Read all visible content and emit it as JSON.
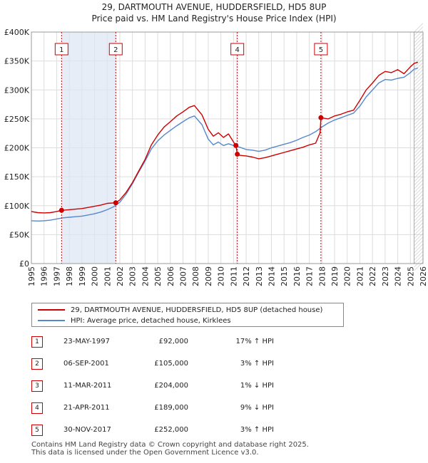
{
  "title_line1": "29, DARTMOUTH AVENUE, HUDDERSFIELD, HD5 8UP",
  "title_line2": "Price paid vs. HM Land Registry's House Price Index (HPI)",
  "chart_data": {
    "type": "line",
    "xlim": [
      1995,
      2026
    ],
    "ylim": [
      0,
      400000
    ],
    "grid": true,
    "x_ticks": [
      "1995",
      "1996",
      "1997",
      "1998",
      "1999",
      "2000",
      "2001",
      "2002",
      "2003",
      "2004",
      "2005",
      "2006",
      "2007",
      "2008",
      "2009",
      "2010",
      "2011",
      "2012",
      "2013",
      "2014",
      "2015",
      "2016",
      "2017",
      "2018",
      "2019",
      "2020",
      "2021",
      "2022",
      "2023",
      "2024",
      "2025",
      "2026"
    ],
    "y_ticks": [
      {
        "value": 0,
        "label": "£0"
      },
      {
        "value": 50000,
        "label": "£50K"
      },
      {
        "value": 100000,
        "label": "£100K"
      },
      {
        "value": 150000,
        "label": "£150K"
      },
      {
        "value": 200000,
        "label": "£200K"
      },
      {
        "value": 250000,
        "label": "£250K"
      },
      {
        "value": 300000,
        "label": "£300K"
      },
      {
        "value": 350000,
        "label": "£350K"
      },
      {
        "value": 400000,
        "label": "£400K"
      }
    ],
    "series": [
      {
        "name": "29, DARTMOUTH AVENUE, HUDDERSFIELD, HD5 8UP (detached house)",
        "color": "#cc0000",
        "x": [
          1995.0,
          1995.5,
          1996.0,
          1996.5,
          1997.0,
          1997.39,
          1998.0,
          1998.5,
          1999.0,
          1999.5,
          2000.0,
          2000.5,
          2001.0,
          2001.68,
          2002.0,
          2002.5,
          2003.0,
          2003.5,
          2004.0,
          2004.5,
          2005.0,
          2005.5,
          2006.0,
          2006.5,
          2007.0,
          2007.5,
          2007.9,
          2008.5,
          2009.0,
          2009.4,
          2009.8,
          2010.2,
          2010.6,
          2011.0,
          2011.19,
          2011.3,
          2011.5,
          2012.0,
          2012.5,
          2013.0,
          2013.5,
          2014.0,
          2014.5,
          2015.0,
          2015.5,
          2016.0,
          2016.5,
          2017.0,
          2017.5,
          2017.85,
          2017.92,
          2018.5,
          2019.0,
          2019.5,
          2020.0,
          2020.5,
          2021.0,
          2021.5,
          2022.0,
          2022.5,
          2023.0,
          2023.5,
          2024.0,
          2024.5,
          2025.0,
          2025.3,
          2025.6
        ],
        "y": [
          90000,
          88000,
          87500,
          88000,
          90000,
          92000,
          93000,
          94000,
          95000,
          97000,
          99000,
          101000,
          104000,
          105000,
          110000,
          123000,
          140000,
          160000,
          180000,
          205000,
          222000,
          236000,
          245000,
          255000,
          262000,
          270000,
          273000,
          257000,
          232000,
          220000,
          226000,
          218000,
          224000,
          210000,
          204000,
          189000,
          187000,
          186000,
          184000,
          181000,
          183000,
          186000,
          189000,
          192000,
          195000,
          198000,
          201000,
          205000,
          208000,
          226000,
          252000,
          250000,
          255000,
          258000,
          262000,
          265000,
          282000,
          300000,
          312000,
          325000,
          332000,
          330000,
          335000,
          328000,
          340000,
          346000,
          348000
        ]
      },
      {
        "name": "HPI: Average price, detached house, Kirklees",
        "color": "#5588cc",
        "x": [
          1995.0,
          1995.5,
          1996.0,
          1996.5,
          1997.0,
          1997.5,
          1998.0,
          1998.5,
          1999.0,
          1999.5,
          2000.0,
          2000.5,
          2001.0,
          2001.5,
          2002.0,
          2002.5,
          2003.0,
          2003.5,
          2004.0,
          2004.5,
          2005.0,
          2005.5,
          2006.0,
          2006.5,
          2007.0,
          2007.5,
          2007.9,
          2008.5,
          2009.0,
          2009.4,
          2009.8,
          2010.2,
          2010.6,
          2011.0,
          2011.5,
          2012.0,
          2012.5,
          2013.0,
          2013.5,
          2014.0,
          2014.5,
          2015.0,
          2015.5,
          2016.0,
          2016.5,
          2017.0,
          2017.5,
          2018.0,
          2018.5,
          2019.0,
          2019.5,
          2020.0,
          2020.5,
          2021.0,
          2021.5,
          2022.0,
          2022.5,
          2023.0,
          2023.5,
          2024.0,
          2024.5,
          2025.0,
          2025.3,
          2025.6
        ],
        "y": [
          74000,
          73500,
          74000,
          75000,
          77000,
          79000,
          80000,
          81000,
          82000,
          84000,
          86000,
          89000,
          93000,
          98000,
          106000,
          120000,
          138000,
          158000,
          177000,
          198000,
          212000,
          222000,
          230000,
          238000,
          245000,
          252000,
          255000,
          240000,
          215000,
          205000,
          210000,
          204000,
          207000,
          204000,
          201000,
          197000,
          196000,
          194000,
          196000,
          200000,
          203000,
          206000,
          209000,
          213000,
          218000,
          222000,
          228000,
          236000,
          243000,
          248000,
          252000,
          256000,
          260000,
          272000,
          288000,
          300000,
          312000,
          318000,
          317000,
          320000,
          322000,
          330000,
          336000,
          338000
        ]
      }
    ],
    "transactions": [
      {
        "label": "1",
        "x": 1997.39,
        "y": 92000
      },
      {
        "label": "2",
        "x": 2001.68,
        "y": 105000
      },
      {
        "label": "4",
        "x": 2011.3,
        "y": 189000
      },
      {
        "label": "5",
        "x": 2017.92,
        "y": 252000
      }
    ],
    "extra_markers": [
      {
        "x": 2011.19,
        "y": 204000
      }
    ],
    "shaded_periods": [
      {
        "from": 1997.39,
        "to": 2001.68
      },
      {
        "from": 2011.19,
        "to": 2011.3
      }
    ],
    "forecast_start": 2025.3
  },
  "legend": {
    "red_label": "29, DARTMOUTH AVENUE, HUDDERSFIELD, HD5 8UP (detached house)",
    "blue_label": "HPI: Average price, detached house, Kirklees",
    "red_color": "#cc0000",
    "blue_color": "#5588cc"
  },
  "transactions_table": [
    {
      "num": "1",
      "date": "23-MAY-1997",
      "price": "£92,000",
      "hpi": "17% ↑ HPI"
    },
    {
      "num": "2",
      "date": "06-SEP-2001",
      "price": "£105,000",
      "hpi": "3% ↑ HPI"
    },
    {
      "num": "3",
      "date": "11-MAR-2011",
      "price": "£204,000",
      "hpi": "1% ↓ HPI"
    },
    {
      "num": "4",
      "date": "21-APR-2011",
      "price": "£189,000",
      "hpi": "9% ↓ HPI"
    },
    {
      "num": "5",
      "date": "30-NOV-2017",
      "price": "£252,000",
      "hpi": "3% ↑ HPI"
    }
  ],
  "footer": {
    "line1": "Contains HM Land Registry data © Crown copyright and database right 2025.",
    "line2": "This data is licensed under the Open Government Licence v3.0."
  }
}
